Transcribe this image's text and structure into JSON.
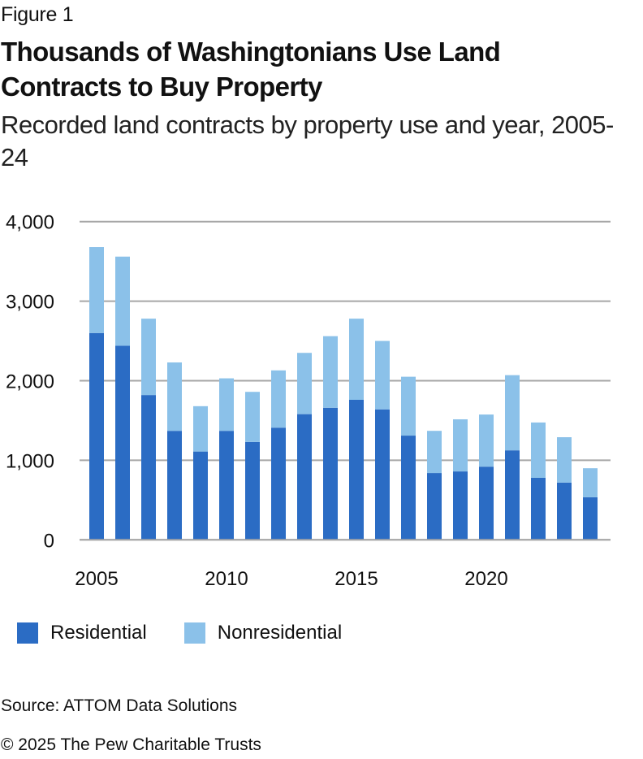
{
  "header": {
    "figure_label": "Figure 1",
    "title": "Thousands of Washingtonians Use Land Contracts to Buy Property",
    "subtitle": "Recorded land contracts by property use and year, 2005-24"
  },
  "chart_data": {
    "type": "bar",
    "stacked": true,
    "title": "Thousands of Washingtonians Use Land Contracts to Buy Property",
    "subtitle": "Recorded land contracts by property use and year, 2005-24",
    "xlabel": "",
    "ylabel": "",
    "categories": [
      "2005",
      "2006",
      "2007",
      "2008",
      "2009",
      "2010",
      "2011",
      "2012",
      "2013",
      "2014",
      "2015",
      "2016",
      "2017",
      "2018",
      "2019",
      "2020",
      "2021",
      "2022",
      "2023",
      "2024"
    ],
    "x_tick_labels": [
      "2005",
      "",
      "",
      "",
      "",
      "2010",
      "",
      "",
      "",
      "",
      "2015",
      "",
      "",
      "",
      "",
      "2020",
      "",
      "",
      "",
      ""
    ],
    "ylim": [
      0,
      4000
    ],
    "y_ticks": [
      0,
      1000,
      2000,
      3000,
      4000
    ],
    "y_tick_labels": [
      "0",
      "1,000",
      "2,000",
      "3,000",
      "4,000"
    ],
    "grid": true,
    "legend_position": "bottom-left",
    "series": [
      {
        "name": "Residential",
        "color": "#2B6CC4",
        "values": [
          2600,
          2440,
          1820,
          1370,
          1110,
          1370,
          1230,
          1410,
          1580,
          1660,
          1760,
          1640,
          1310,
          840,
          860,
          920,
          1125,
          780,
          720,
          535
        ]
      },
      {
        "name": "Nonresidential",
        "color": "#8BC1E9",
        "values": [
          1080,
          1120,
          960,
          860,
          570,
          660,
          630,
          720,
          770,
          900,
          1020,
          860,
          740,
          530,
          655,
          655,
          945,
          695,
          570,
          365
        ]
      }
    ],
    "totals": [
      3680,
      3560,
      2780,
      2230,
      1680,
      2030,
      1860,
      2130,
      2350,
      2560,
      2780,
      2500,
      2050,
      1370,
      1515,
      1575,
      2070,
      1475,
      1290,
      900
    ]
  },
  "legend": {
    "items": [
      {
        "label": "Residential",
        "color": "#2B6CC4"
      },
      {
        "label": "Nonresidential",
        "color": "#8BC1E9"
      }
    ]
  },
  "footer": {
    "source": "Source: ATTOM Data Solutions",
    "copyright": "© 2025 The Pew Charitable Trusts"
  },
  "colors": {
    "gridline": "#A6A6A6",
    "text": "#111111"
  }
}
